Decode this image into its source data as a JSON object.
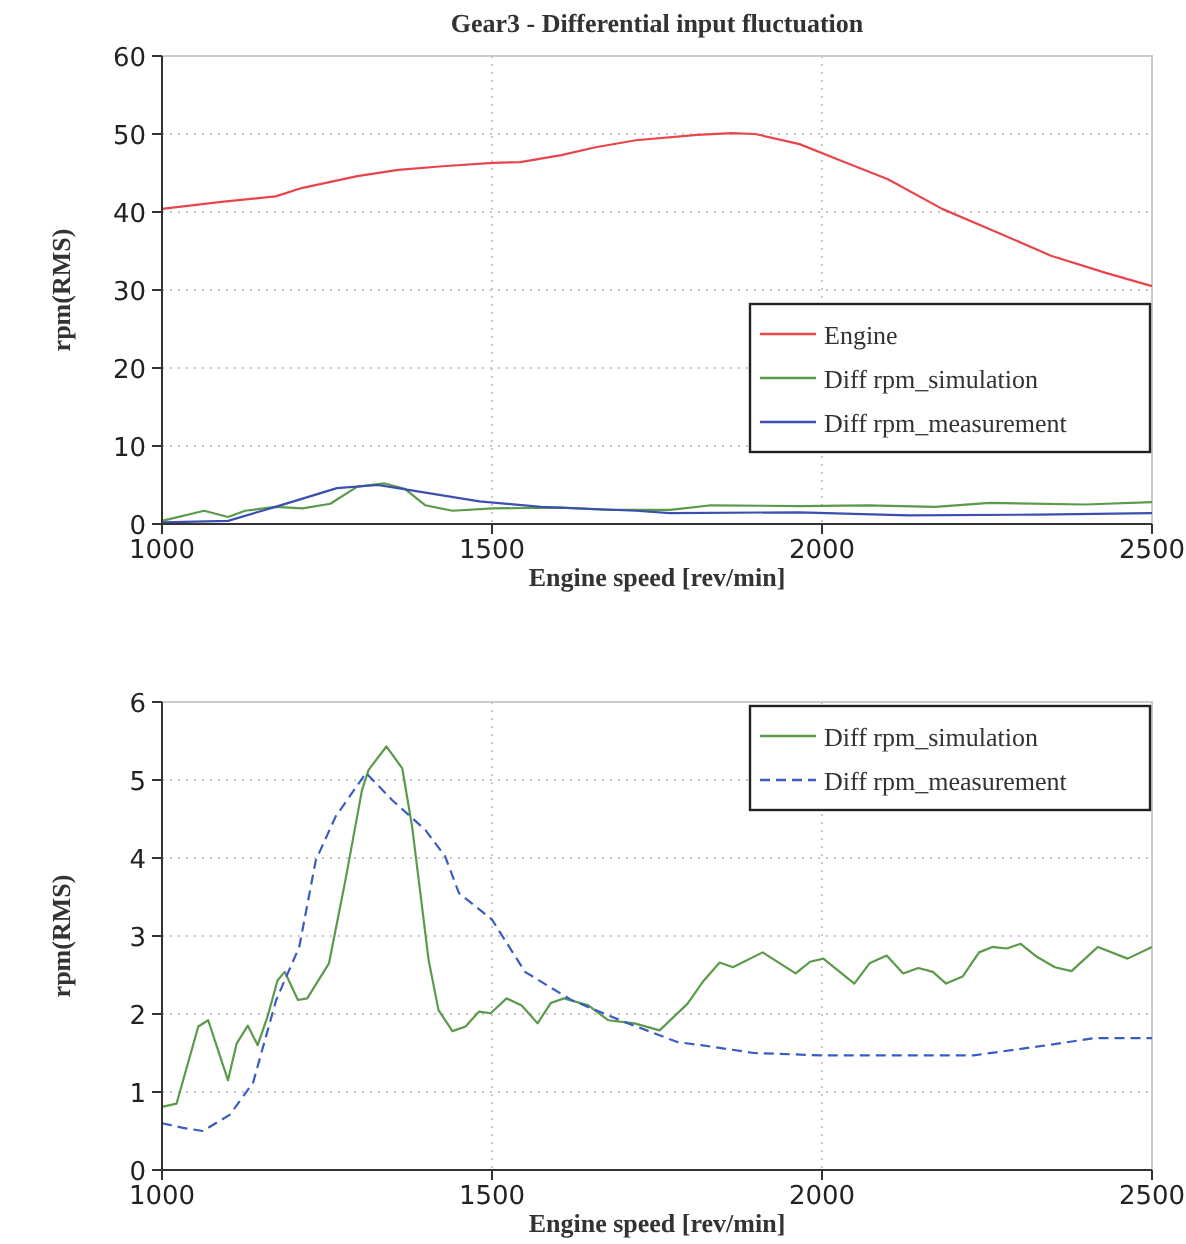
{
  "chart_data": [
    {
      "type": "line",
      "title": "Gear3 - Differential input fluctuation",
      "xlabel": "Engine speed [rev/min]",
      "ylabel": "rpm(RMS)",
      "xlim": [
        1000,
        2500
      ],
      "xticks": [
        1000,
        1500,
        2000,
        2500
      ],
      "ylim": [
        0,
        60
      ],
      "yticks": [
        0,
        10,
        20,
        30,
        40,
        50,
        60
      ],
      "grid": true,
      "legend": "right",
      "line_style": "solid",
      "series": [
        {
          "name": "Engine",
          "color": "#e8454a",
          "x": [
            1000,
            1090,
            1172,
            1213,
            1296,
            1358,
            1430,
            1502,
            1543,
            1605,
            1657,
            1718,
            1811,
            1863,
            1899,
            1966,
            2028,
            2100,
            2182,
            2265,
            2347,
            2430,
            2500
          ],
          "values": [
            40.4,
            41.3,
            42.0,
            43.1,
            44.6,
            45.4,
            45.9,
            46.3,
            46.4,
            47.3,
            48.3,
            49.2,
            49.9,
            50.1,
            50.0,
            48.7,
            46.6,
            44.2,
            40.4,
            37.4,
            34.4,
            32.2,
            30.5
          ]
        },
        {
          "name": "Diff rpm_simulation",
          "color": "#5a9a4a",
          "x": [
            1000,
            1064,
            1100,
            1126,
            1172,
            1213,
            1255,
            1296,
            1337,
            1368,
            1399,
            1440,
            1502,
            1605,
            1677,
            1770,
            1832,
            1966,
            2069,
            2172,
            2254,
            2399,
            2500
          ],
          "values": [
            0.4,
            1.7,
            0.9,
            1.7,
            2.2,
            2.0,
            2.6,
            4.8,
            5.2,
            4.5,
            2.4,
            1.7,
            2.0,
            2.1,
            1.8,
            1.8,
            2.4,
            2.3,
            2.4,
            2.2,
            2.7,
            2.5,
            2.8
          ]
        },
        {
          "name": "Diff rpm_measurement",
          "color": "#3a4fb0",
          "x": [
            1000,
            1100,
            1172,
            1265,
            1327,
            1378,
            1481,
            1574,
            1718,
            1770,
            1966,
            2131,
            2327,
            2500
          ],
          "values": [
            0.2,
            0.4,
            2.2,
            4.6,
            5.0,
            4.3,
            2.9,
            2.2,
            1.7,
            1.4,
            1.5,
            1.1,
            1.2,
            1.4
          ]
        }
      ]
    },
    {
      "type": "line",
      "xlabel": "Engine speed [rev/min]",
      "ylabel": "rpm(RMS)",
      "xlim": [
        1000,
        2500
      ],
      "xticks": [
        1000,
        1500,
        2000,
        2500
      ],
      "ylim": [
        0,
        6
      ],
      "yticks": [
        0,
        1,
        2,
        3,
        4,
        5,
        6
      ],
      "grid": true,
      "legend": "top right",
      "series": [
        {
          "name": "Diff rpm_simulation",
          "color": "#5a9a4a",
          "line_style": "solid",
          "x": [
            1000,
            1022,
            1055,
            1070,
            1100,
            1113,
            1130,
            1145,
            1160,
            1175,
            1186,
            1206,
            1220,
            1253,
            1278,
            1303,
            1313,
            1340,
            1364,
            1379,
            1404,
            1419,
            1440,
            1460,
            1480,
            1498,
            1522,
            1545,
            1569,
            1589,
            1609,
            1646,
            1676,
            1716,
            1754,
            1796,
            1821,
            1845,
            1865,
            1910,
            1960,
            1982,
            2002,
            2049,
            2072,
            2098,
            2123,
            2146,
            2168,
            2188,
            2213,
            2238,
            2258,
            2280,
            2301,
            2326,
            2353,
            2378,
            2418,
            2463,
            2500
          ],
          "values": [
            0.81,
            0.85,
            1.84,
            1.92,
            1.15,
            1.62,
            1.85,
            1.6,
            1.97,
            2.43,
            2.54,
            2.18,
            2.2,
            2.65,
            3.72,
            4.87,
            5.13,
            5.43,
            5.15,
            4.4,
            2.69,
            2.05,
            1.78,
            1.84,
            2.03,
            2.01,
            2.2,
            2.11,
            1.88,
            2.14,
            2.2,
            2.11,
            1.92,
            1.88,
            1.79,
            2.13,
            2.43,
            2.66,
            2.6,
            2.79,
            2.52,
            2.67,
            2.71,
            2.39,
            2.65,
            2.75,
            2.52,
            2.59,
            2.54,
            2.39,
            2.48,
            2.79,
            2.86,
            2.84,
            2.9,
            2.73,
            2.6,
            2.55,
            2.86,
            2.71,
            2.86
          ]
        },
        {
          "name": "Diff rpm_measurement",
          "color": "#3a5cc0",
          "line_style": "dashed",
          "x": [
            1000,
            1032,
            1062,
            1103,
            1138,
            1173,
            1208,
            1233,
            1263,
            1309,
            1349,
            1399,
            1429,
            1450,
            1500,
            1550,
            1620,
            1700,
            1781,
            1817,
            1897,
            1998,
            2230,
            2290,
            2350,
            2411,
            2500
          ],
          "values": [
            0.6,
            0.54,
            0.5,
            0.71,
            1.12,
            2.18,
            2.86,
            3.97,
            4.53,
            5.09,
            4.74,
            4.36,
            4.02,
            3.55,
            3.21,
            2.54,
            2.18,
            1.9,
            1.64,
            1.6,
            1.5,
            1.47,
            1.47,
            1.54,
            1.61,
            1.69,
            1.69
          ]
        }
      ]
    }
  ]
}
